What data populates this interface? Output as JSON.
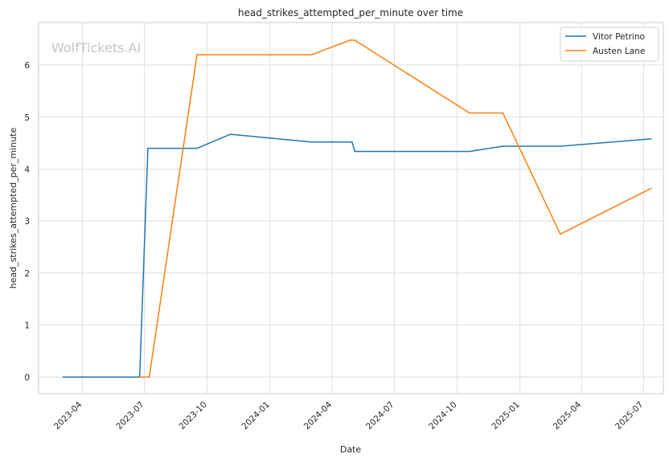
{
  "chart_data": {
    "type": "line",
    "title": "head_strikes_attempted_per_minute over time",
    "xlabel": "Date",
    "ylabel": "head_strikes_attempted_per_minute",
    "watermark": "WolfTickets.AI",
    "grid": true,
    "legend_position": "top-right",
    "x_ticks": [
      "2023-04",
      "2023-07",
      "2023-10",
      "2024-01",
      "2024-04",
      "2024-07",
      "2024-10",
      "2025-01",
      "2025-04",
      "2025-07"
    ],
    "y_ticks": [
      0,
      1,
      2,
      3,
      4,
      5,
      6
    ],
    "ylim": [
      -0.32,
      6.82
    ],
    "xlim": [
      "2023-01-27",
      "2025-07-30"
    ],
    "series": [
      {
        "name": "Vitor Petrino",
        "color": "#1f77b4",
        "points": [
          {
            "x": "2023-03-04",
            "y": 0
          },
          {
            "x": "2023-06-24",
            "y": 0
          },
          {
            "x": "2023-07-06",
            "y": 4.4
          },
          {
            "x": "2023-09-16",
            "y": 4.4
          },
          {
            "x": "2023-11-04",
            "y": 4.67
          },
          {
            "x": "2024-03-02",
            "y": 4.52
          },
          {
            "x": "2024-04-30",
            "y": 4.52
          },
          {
            "x": "2024-05-04",
            "y": 4.34
          },
          {
            "x": "2024-10-19",
            "y": 4.34
          },
          {
            "x": "2024-12-07",
            "y": 4.44
          },
          {
            "x": "2025-03-01",
            "y": 4.44
          },
          {
            "x": "2025-07-12",
            "y": 4.58
          }
        ]
      },
      {
        "name": "Austen Lane",
        "color": "#ff7f0e",
        "points": [
          {
            "x": "2023-06-24",
            "y": 0
          },
          {
            "x": "2023-07-08",
            "y": 0
          },
          {
            "x": "2023-09-16",
            "y": 6.2
          },
          {
            "x": "2024-03-02",
            "y": 6.2
          },
          {
            "x": "2024-04-27",
            "y": 6.48
          },
          {
            "x": "2024-05-04",
            "y": 6.48
          },
          {
            "x": "2024-10-19",
            "y": 5.08
          },
          {
            "x": "2024-12-07",
            "y": 5.08
          },
          {
            "x": "2025-03-01",
            "y": 2.75
          },
          {
            "x": "2025-07-12",
            "y": 3.63
          }
        ]
      }
    ]
  }
}
